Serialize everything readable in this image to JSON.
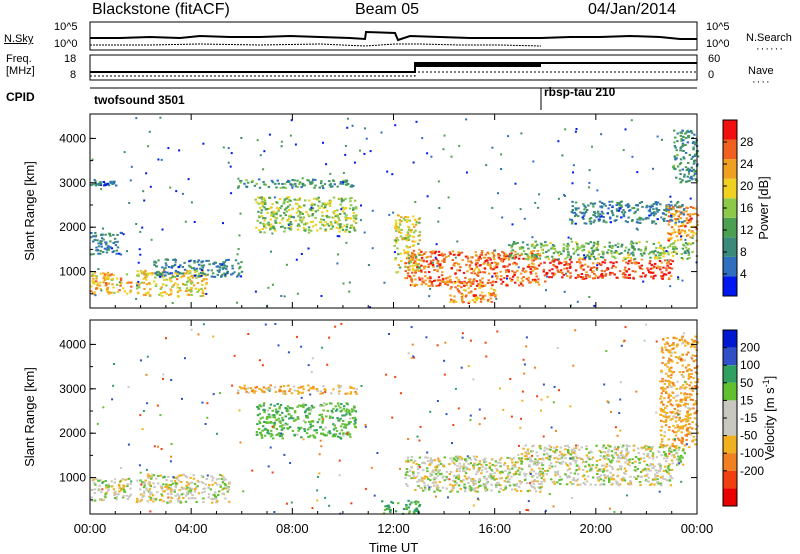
{
  "header": {
    "station": "Blackstone (fitACF)",
    "beam": "Beam 05",
    "date": "04/Jan/2014"
  },
  "noise_panel": {
    "left_label": "N.Sky",
    "right_label": "N.Search",
    "left_ticks": [
      "10^5",
      "10^0"
    ],
    "right_ticks": [
      "10^5",
      "10^0"
    ]
  },
  "freq_panel": {
    "left_label_line1": "Freq.",
    "left_label_line2": "[MHz]",
    "right_label": "Nave",
    "left_ticks": [
      "18",
      "8"
    ],
    "right_ticks": [
      "60",
      "0"
    ]
  },
  "cpid_panel": {
    "label": "CPID",
    "programs": [
      {
        "name": "twofsound 3501",
        "start_hour": 0
      },
      {
        "name": "rbsp-tau 210",
        "start_hour": 18.0
      }
    ]
  },
  "colors": {
    "power_scale": [
      "#0018f0",
      "#2f6fc0",
      "#3a8a7a",
      "#4aa050",
      "#8cc84a",
      "#f0d020",
      "#f0a020",
      "#f06020",
      "#f01010"
    ],
    "velocity_scale": [
      "#0018d0",
      "#3050c8",
      "#30a060",
      "#60c030",
      "#c8c8c0",
      "#c8c8c0",
      "#f0b020",
      "#f08020",
      "#f04010",
      "#e80000"
    ]
  },
  "chart_data": [
    {
      "type": "heatmap",
      "name": "power",
      "ylabel": "Slant Range [km]",
      "xlabel": "Time UT",
      "x_ticks": [
        "00:00",
        "04:00",
        "08:00",
        "12:00",
        "16:00",
        "20:00",
        "00:00"
      ],
      "y_ticks": [
        1000,
        2000,
        3000,
        4000
      ],
      "xlim": [
        0,
        24
      ],
      "ylim": [
        180,
        4550
      ],
      "colorbar": {
        "label": "Power [dB]",
        "ticks": [
          4,
          8,
          12,
          16,
          20,
          24,
          28
        ],
        "range": [
          0,
          32
        ]
      },
      "regions": [
        {
          "t0": 0.0,
          "t1": 1.6,
          "r0": 500,
          "r1": 1000,
          "value": 22
        },
        {
          "t0": 0.0,
          "t1": 1.2,
          "r0": 1400,
          "r1": 1900,
          "value": 8
        },
        {
          "t0": 1.8,
          "t1": 4.6,
          "r0": 450,
          "r1": 1050,
          "value": 20
        },
        {
          "t0": 2.5,
          "t1": 6.0,
          "r0": 900,
          "r1": 1300,
          "value": 8
        },
        {
          "t0": 5.8,
          "t1": 10.5,
          "r0": 2900,
          "r1": 3100,
          "value": 10
        },
        {
          "t0": 6.5,
          "t1": 10.5,
          "r0": 1900,
          "r1": 2700,
          "value": 16
        },
        {
          "t0": 0.0,
          "t1": 1.0,
          "r0": 2950,
          "r1": 3050,
          "value": 6
        },
        {
          "t0": 12.4,
          "t1": 18.0,
          "r0": 700,
          "r1": 1500,
          "value": 26
        },
        {
          "t0": 14.2,
          "t1": 16.0,
          "r0": 300,
          "r1": 800,
          "value": 24
        },
        {
          "t0": 18.0,
          "t1": 23.0,
          "r0": 850,
          "r1": 1300,
          "value": 28
        },
        {
          "t0": 16.5,
          "t1": 23.8,
          "r0": 1300,
          "r1": 1700,
          "value": 14
        },
        {
          "t0": 19.0,
          "t1": 23.5,
          "r0": 2100,
          "r1": 2600,
          "value": 8
        },
        {
          "t0": 22.8,
          "t1": 24.0,
          "r0": 1700,
          "r1": 2500,
          "value": 24
        },
        {
          "t0": 23.0,
          "t1": 24.0,
          "r0": 3000,
          "r1": 4200,
          "value": 10
        },
        {
          "t0": 12.0,
          "t1": 13.0,
          "r0": 1000,
          "r1": 2300,
          "value": 18
        }
      ]
    },
    {
      "type": "heatmap",
      "name": "velocity",
      "ylabel": "Slant Range [km]",
      "xlabel": "Time UT",
      "x_ticks": [
        "00:00",
        "04:00",
        "08:00",
        "12:00",
        "16:00",
        "20:00",
        "00:00"
      ],
      "y_ticks": [
        1000,
        2000,
        3000,
        4000
      ],
      "xlim": [
        0,
        24
      ],
      "ylim": [
        180,
        4550
      ],
      "colorbar": {
        "label": "Velocity [m s^-1]",
        "ticks": [
          200,
          100,
          50,
          15,
          -15,
          -50,
          -100,
          -200
        ],
        "range": [
          -250,
          250
        ]
      },
      "regions": [
        {
          "t0": 0.0,
          "t1": 1.6,
          "r0": 500,
          "r1": 1000,
          "value": 0
        },
        {
          "t0": 1.8,
          "t1": 5.5,
          "r0": 450,
          "r1": 1100,
          "value": 0
        },
        {
          "t0": 5.8,
          "t1": 10.5,
          "r0": 2900,
          "r1": 3100,
          "value": -30
        },
        {
          "t0": 6.5,
          "t1": 10.5,
          "r0": 1900,
          "r1": 2700,
          "value": 40
        },
        {
          "t0": 12.4,
          "t1": 18.0,
          "r0": 700,
          "r1": 1500,
          "value": 0
        },
        {
          "t0": 18.0,
          "t1": 23.0,
          "r0": 850,
          "r1": 1300,
          "value": 0
        },
        {
          "t0": 17.0,
          "t1": 23.5,
          "r0": 1300,
          "r1": 1750,
          "value": 0
        },
        {
          "t0": 22.5,
          "t1": 24.0,
          "r0": 1700,
          "r1": 4200,
          "value": -40
        },
        {
          "t0": 11.5,
          "t1": 13.0,
          "r0": 200,
          "r1": 500,
          "value": 70
        }
      ]
    }
  ]
}
